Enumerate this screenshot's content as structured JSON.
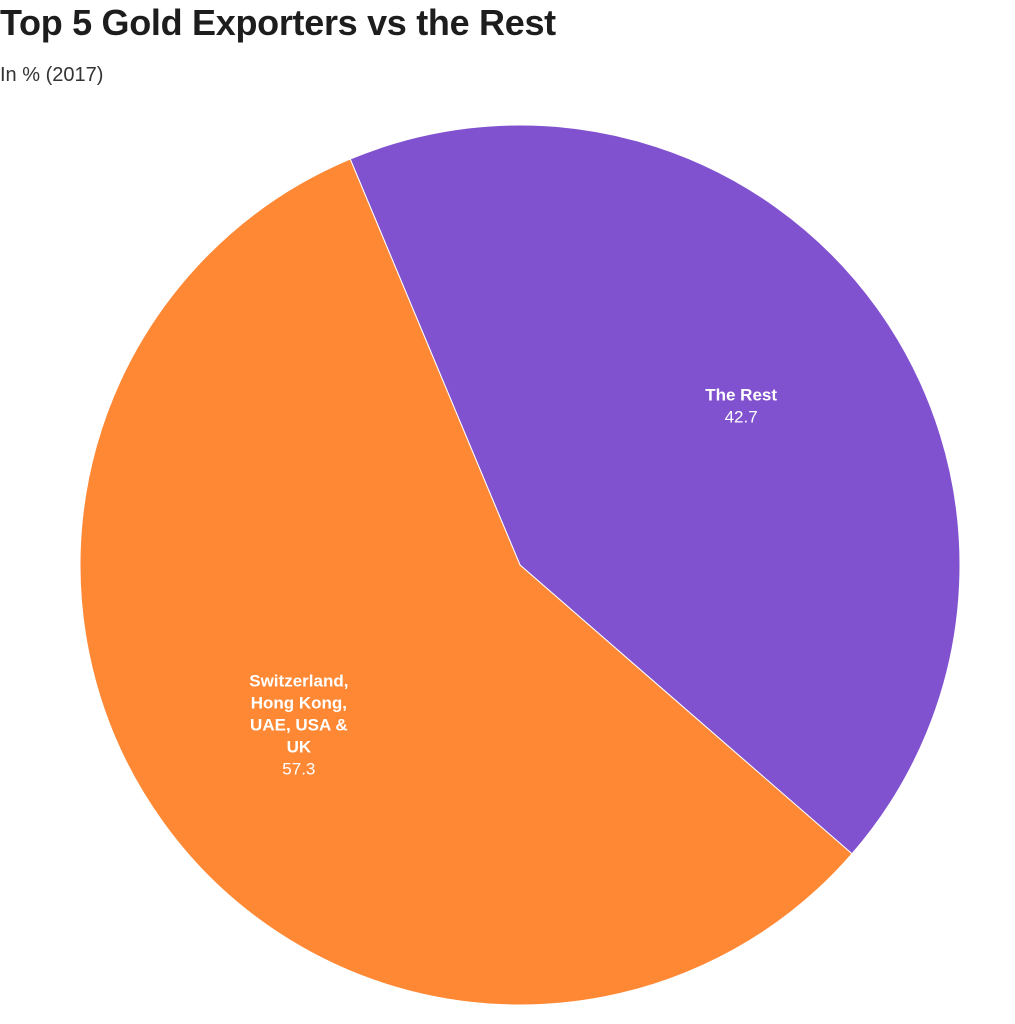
{
  "title": "Top 5 Gold Exporters vs the Rest",
  "subtitle": "In % (2017)",
  "chart_data": {
    "type": "pie",
    "title": "Top 5 Gold Exporters vs the Rest",
    "subtitle": "In % (2017)",
    "start_angle_deg": -22.7,
    "direction": "clockwise",
    "slices": [
      {
        "label": "The Rest",
        "label_lines": [
          "The Rest"
        ],
        "value": 42.7,
        "value_label": "42.7",
        "color": "#8152CF"
      },
      {
        "label": "Switzerland, Hong Kong, UAE, USA & UK",
        "label_lines": [
          "Switzerland,",
          "Hong Kong,",
          "UAE, USA &",
          "UK"
        ],
        "value": 57.3,
        "value_label": "57.3",
        "color": "#FF8835"
      }
    ]
  }
}
